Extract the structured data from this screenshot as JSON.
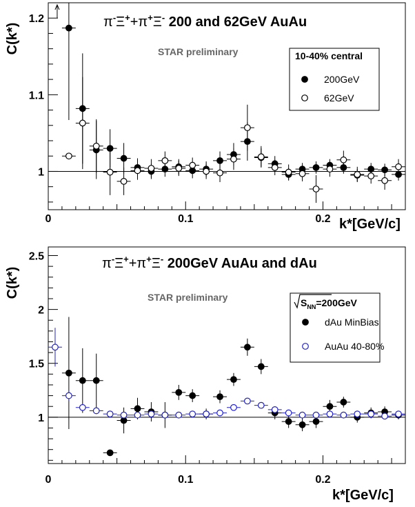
{
  "chart_data": [
    {
      "type": "scatter",
      "title_parts": [
        "π",
        "-",
        "Ξ",
        "+",
        "+π",
        "+",
        "Ξ",
        "-",
        "  200 and 62GeV AuAu"
      ],
      "annotation": "STAR preliminary",
      "xlabel": "k*[GeV/c]",
      "ylabel": "C(k*)",
      "xlim": [
        0,
        0.26
      ],
      "ylim": [
        0.95,
        1.22
      ],
      "x_ticks": [
        "0",
        "0.1",
        "0.2"
      ],
      "y_ticks": [
        "1",
        "1.1",
        "1.2"
      ],
      "reference_line": 1,
      "legend_title": "10-40% central",
      "legend_position": "top-right",
      "series": [
        {
          "name": "200GeV",
          "marker": "filled",
          "color": "#000000",
          "points": [
            {
              "x": 0.015,
              "y": 1.187,
              "err": 0.12
            },
            {
              "x": 0.025,
              "y": 1.082,
              "err": 0.072
            },
            {
              "x": 0.035,
              "y": 1.028,
              "err": 0.038
            },
            {
              "x": 0.045,
              "y": 1.03,
              "err": 0.025
            },
            {
              "x": 0.055,
              "y": 1.017,
              "err": 0.02
            },
            {
              "x": 0.065,
              "y": 1.005,
              "err": 0.012
            },
            {
              "x": 0.075,
              "y": 1.0,
              "err": 0.01
            },
            {
              "x": 0.085,
              "y": 1.003,
              "err": 0.01
            },
            {
              "x": 0.095,
              "y": 1.006,
              "err": 0.01
            },
            {
              "x": 0.105,
              "y": 1.001,
              "err": 0.01
            },
            {
              "x": 0.115,
              "y": 1.003,
              "err": 0.01
            },
            {
              "x": 0.125,
              "y": 1.014,
              "err": 0.012
            },
            {
              "x": 0.135,
              "y": 1.022,
              "err": 0.015
            },
            {
              "x": 0.145,
              "y": 1.039,
              "err": 0.025
            },
            {
              "x": 0.155,
              "y": 1.018,
              "err": 0.012
            },
            {
              "x": 0.165,
              "y": 1.01,
              "err": 0.01
            },
            {
              "x": 0.175,
              "y": 0.996,
              "err": 0.008
            },
            {
              "x": 0.185,
              "y": 1.003,
              "err": 0.008
            },
            {
              "x": 0.195,
              "y": 1.005,
              "err": 0.008
            },
            {
              "x": 0.205,
              "y": 1.008,
              "err": 0.008
            },
            {
              "x": 0.215,
              "y": 1.005,
              "err": 0.008
            },
            {
              "x": 0.225,
              "y": 0.995,
              "err": 0.008
            },
            {
              "x": 0.235,
              "y": 1.003,
              "err": 0.008
            },
            {
              "x": 0.245,
              "y": 1.002,
              "err": 0.008
            },
            {
              "x": 0.255,
              "y": 0.996,
              "err": 0.008
            }
          ]
        },
        {
          "name": "62GeV",
          "marker": "open",
          "color": "#000000",
          "points": [
            {
              "x": 0.015,
              "y": 1.02,
              "err": 0.0
            },
            {
              "x": 0.025,
              "y": 1.063,
              "err": 0.06
            },
            {
              "x": 0.035,
              "y": 1.033,
              "err": 0.035
            },
            {
              "x": 0.045,
              "y": 0.999,
              "err": 0.03
            },
            {
              "x": 0.055,
              "y": 0.987,
              "err": 0.018
            },
            {
              "x": 0.065,
              "y": 1.001,
              "err": 0.012
            },
            {
              "x": 0.075,
              "y": 1.004,
              "err": 0.012
            },
            {
              "x": 0.085,
              "y": 1.014,
              "err": 0.012
            },
            {
              "x": 0.095,
              "y": 1.004,
              "err": 0.01
            },
            {
              "x": 0.105,
              "y": 1.008,
              "err": 0.01
            },
            {
              "x": 0.115,
              "y": 1.0,
              "err": 0.01
            },
            {
              "x": 0.125,
              "y": 0.998,
              "err": 0.012
            },
            {
              "x": 0.135,
              "y": 1.016,
              "err": 0.014
            },
            {
              "x": 0.145,
              "y": 1.057,
              "err": 0.03
            },
            {
              "x": 0.155,
              "y": 1.019,
              "err": 0.014
            },
            {
              "x": 0.165,
              "y": 1.005,
              "err": 0.01
            },
            {
              "x": 0.175,
              "y": 0.999,
              "err": 0.01
            },
            {
              "x": 0.185,
              "y": 0.997,
              "err": 0.01
            },
            {
              "x": 0.195,
              "y": 0.977,
              "err": 0.018
            },
            {
              "x": 0.205,
              "y": 1.003,
              "err": 0.01
            },
            {
              "x": 0.215,
              "y": 1.015,
              "err": 0.012
            },
            {
              "x": 0.225,
              "y": 0.996,
              "err": 0.01
            },
            {
              "x": 0.235,
              "y": 0.994,
              "err": 0.01
            },
            {
              "x": 0.245,
              "y": 0.988,
              "err": 0.012
            },
            {
              "x": 0.255,
              "y": 1.006,
              "err": 0.01
            }
          ]
        }
      ]
    },
    {
      "type": "scatter",
      "title_parts": [
        "π",
        "-",
        "Ξ",
        "+",
        "+π",
        "+",
        "Ξ",
        "-",
        "  200GeV AuAu and dAu"
      ],
      "annotation": "STAR preliminary",
      "xlabel": "k*[GeV/c]",
      "ylabel": "C(k*)",
      "xlim": [
        0,
        0.26
      ],
      "ylim": [
        0.57,
        2.58
      ],
      "x_ticks": [
        "0",
        "0.1",
        "0.2"
      ],
      "y_ticks": [
        "1",
        "1.5",
        "2",
        "2.5"
      ],
      "reference_line": 1,
      "legend_title_parts": [
        "S",
        "NN",
        "=200GeV"
      ],
      "legend_position": "top-right",
      "series": [
        {
          "name": "dAu  MinBias",
          "marker": "filled",
          "color": "#000000",
          "points": [
            {
              "x": 0.015,
              "y": 1.41,
              "err": 0.52
            },
            {
              "x": 0.025,
              "y": 1.34,
              "err": 0.3
            },
            {
              "x": 0.035,
              "y": 1.34,
              "err": 0.25
            },
            {
              "x": 0.045,
              "y": 0.67,
              "err": 0.0
            },
            {
              "x": 0.055,
              "y": 0.97,
              "err": 0.12
            },
            {
              "x": 0.065,
              "y": 1.08,
              "err": 0.1
            },
            {
              "x": 0.075,
              "y": 1.05,
              "err": 0.09
            },
            {
              "x": 0.085,
              "y": 1.02,
              "err": 0.12
            },
            {
              "x": 0.095,
              "y": 1.23,
              "err": 0.07
            },
            {
              "x": 0.105,
              "y": 1.2,
              "err": 0.06
            },
            {
              "x": 0.115,
              "y": 1.03,
              "err": 0.05
            },
            {
              "x": 0.125,
              "y": 1.19,
              "err": 0.06
            },
            {
              "x": 0.135,
              "y": 1.35,
              "err": 0.06
            },
            {
              "x": 0.145,
              "y": 1.65,
              "err": 0.08
            },
            {
              "x": 0.155,
              "y": 1.47,
              "err": 0.07
            },
            {
              "x": 0.165,
              "y": 1.04,
              "err": 0.06
            },
            {
              "x": 0.175,
              "y": 0.96,
              "err": 0.06
            },
            {
              "x": 0.185,
              "y": 0.93,
              "err": 0.06
            },
            {
              "x": 0.195,
              "y": 0.96,
              "err": 0.06
            },
            {
              "x": 0.205,
              "y": 1.1,
              "err": 0.06
            },
            {
              "x": 0.215,
              "y": 1.14,
              "err": 0.05
            },
            {
              "x": 0.225,
              "y": 1.0,
              "err": 0.05
            },
            {
              "x": 0.235,
              "y": 1.04,
              "err": 0.05
            },
            {
              "x": 0.245,
              "y": 1.05,
              "err": 0.05
            },
            {
              "x": 0.255,
              "y": 1.02,
              "err": 0.04
            }
          ]
        },
        {
          "name": "AuAu 40-80%",
          "marker": "open",
          "color": "#1f1fd0",
          "points": [
            {
              "x": 0.005,
              "y": 1.65,
              "err": 0.18
            },
            {
              "x": 0.015,
              "y": 1.2,
              "err": 0.05
            },
            {
              "x": 0.025,
              "y": 1.09,
              "err": 0.03
            },
            {
              "x": 0.035,
              "y": 1.06,
              "err": 0.02
            },
            {
              "x": 0.045,
              "y": 1.03,
              "err": 0.015
            },
            {
              "x": 0.055,
              "y": 1.02,
              "err": 0.012
            },
            {
              "x": 0.065,
              "y": 1.02,
              "err": 0.01
            },
            {
              "x": 0.075,
              "y": 1.03,
              "err": 0.01
            },
            {
              "x": 0.085,
              "y": 1.02,
              "err": 0.01
            },
            {
              "x": 0.095,
              "y": 1.02,
              "err": 0.01
            },
            {
              "x": 0.105,
              "y": 1.03,
              "err": 0.01
            },
            {
              "x": 0.115,
              "y": 1.03,
              "err": 0.01
            },
            {
              "x": 0.125,
              "y": 1.04,
              "err": 0.01
            },
            {
              "x": 0.135,
              "y": 1.09,
              "err": 0.01
            },
            {
              "x": 0.145,
              "y": 1.15,
              "err": 0.01
            },
            {
              "x": 0.155,
              "y": 1.11,
              "err": 0.01
            },
            {
              "x": 0.165,
              "y": 1.07,
              "err": 0.01
            },
            {
              "x": 0.175,
              "y": 1.04,
              "err": 0.01
            },
            {
              "x": 0.185,
              "y": 1.02,
              "err": 0.01
            },
            {
              "x": 0.195,
              "y": 1.02,
              "err": 0.01
            },
            {
              "x": 0.205,
              "y": 1.03,
              "err": 0.01
            },
            {
              "x": 0.215,
              "y": 1.02,
              "err": 0.01
            },
            {
              "x": 0.225,
              "y": 1.03,
              "err": 0.01
            },
            {
              "x": 0.235,
              "y": 1.03,
              "err": 0.01
            },
            {
              "x": 0.245,
              "y": 1.01,
              "err": 0.01
            },
            {
              "x": 0.255,
              "y": 1.03,
              "err": 0.01
            }
          ]
        }
      ]
    }
  ]
}
